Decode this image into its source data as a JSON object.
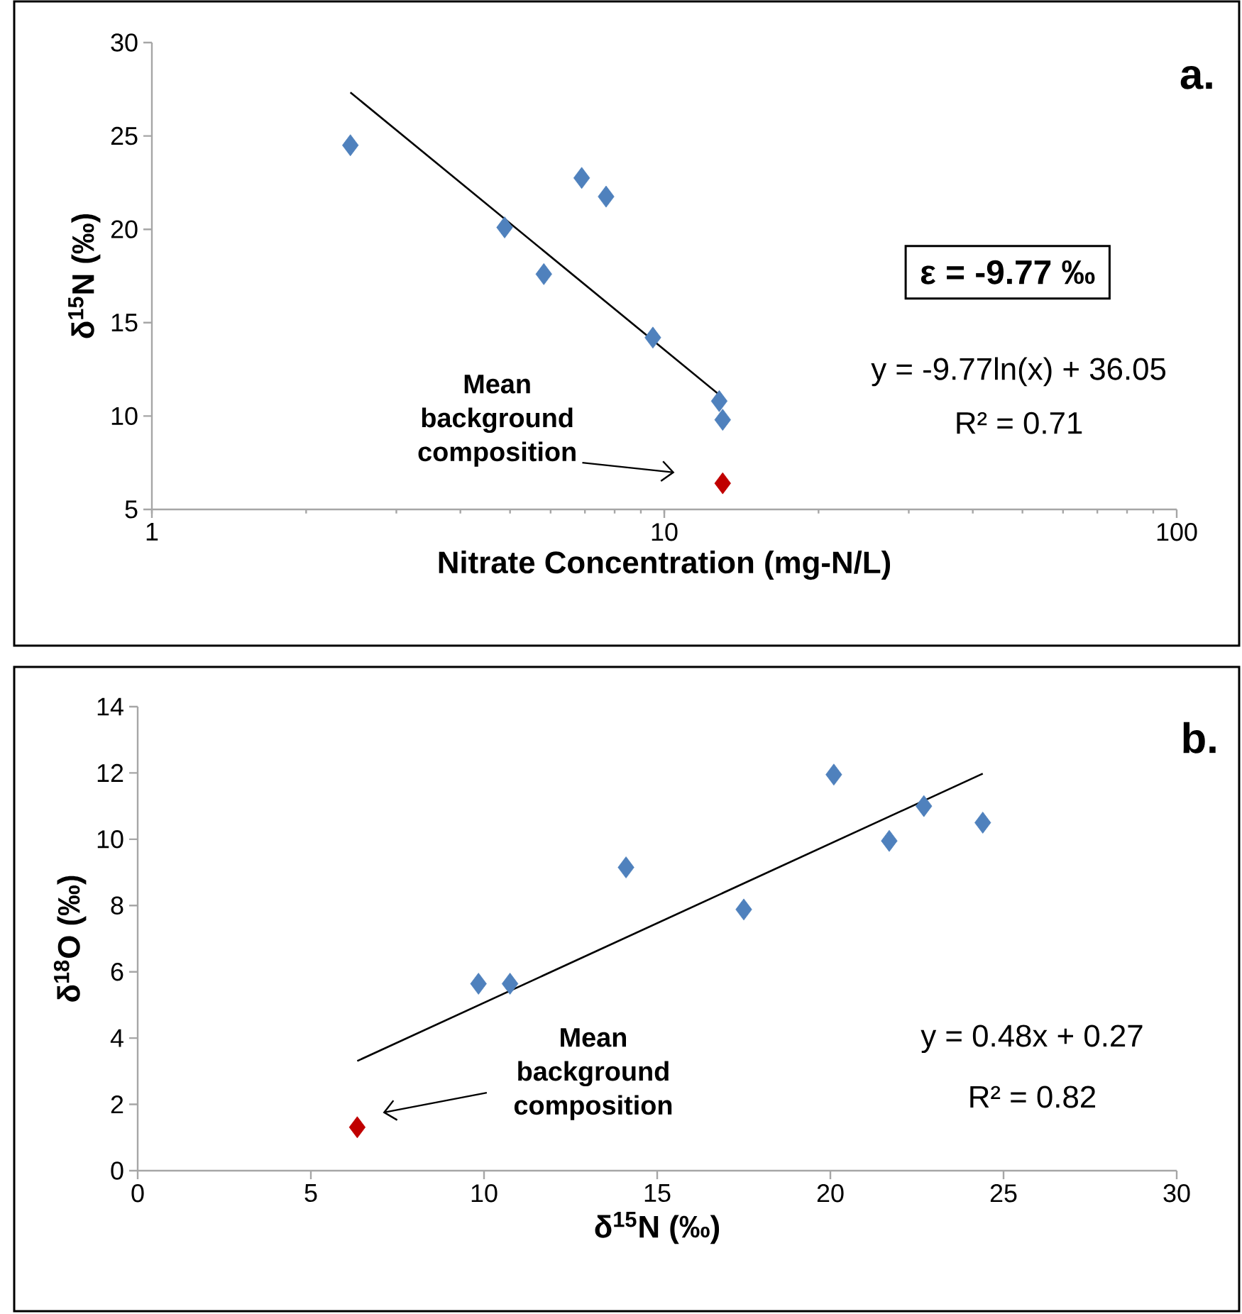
{
  "chart_data": [
    {
      "type": "scatter",
      "title": "a.",
      "xlabel": "Nitrate Concentration (mg-N/L)",
      "ylabel": "δ$^{15}$N (‰)",
      "log": "x",
      "marker": "diamond",
      "xlim": [
        1,
        100
      ],
      "xticks": [
        1,
        10,
        100
      ],
      "ylim": [
        5,
        30
      ],
      "yticks": [
        5,
        10,
        15,
        20,
        25,
        30
      ],
      "series": [
        {
          "color": "#4f81bd",
          "x": [
            2.44,
            4.88,
            5.82,
            6.9,
            7.7,
            9.5,
            12.8,
            13.0
          ],
          "values": [
            24.5,
            20.1,
            17.6,
            22.75,
            21.75,
            14.2,
            10.8,
            9.8
          ]
        },
        {
          "color": "#c00000",
          "x": [
            13.0
          ],
          "values": [
            6.4
          ]
        },
        {
          "type": "line",
          "marker": "none",
          "color": "#000000",
          "x": [
            2.44,
            13.0
          ],
          "values": [
            27.33,
            10.99
          ]
        }
      ],
      "annotations": [
        "ε = -9.77 ‰",
        "y = -9.77ln(x) + 36.05",
        "R² = 0.71",
        "Mean background composition"
      ]
    },
    {
      "type": "scatter",
      "title": "b.",
      "xlabel": "δ$^{15}$N (‰)",
      "ylabel": "δ$^{18}$O (‰)",
      "marker": "diamond",
      "xlim": [
        0,
        30
      ],
      "xticks": [
        0,
        5,
        10,
        15,
        20,
        25,
        30
      ],
      "ylim": [
        0,
        14
      ],
      "yticks": [
        0,
        2,
        4,
        6,
        8,
        10,
        12,
        14
      ],
      "series": [
        {
          "color": "#4f81bd",
          "x": [
            9.84,
            10.75,
            14.1,
            17.5,
            20.1,
            21.7,
            22.7,
            24.4
          ],
          "values": [
            5.64,
            5.64,
            9.15,
            7.88,
            11.95,
            9.95,
            11.0,
            10.5
          ]
        },
        {
          "color": "#c00000",
          "x": [
            6.34
          ],
          "values": [
            1.31
          ]
        },
        {
          "type": "line",
          "marker": "none",
          "color": "#000000",
          "x": [
            6.34,
            24.4
          ],
          "values": [
            3.31,
            11.98
          ]
        }
      ],
      "annotations": [
        "y = 0.48x + 0.27",
        "R² = 0.82",
        "Mean background composition"
      ]
    }
  ]
}
